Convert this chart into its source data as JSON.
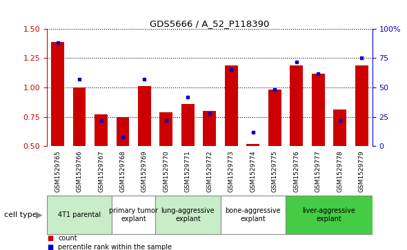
{
  "title": "GDS5666 / A_52_P118390",
  "samples": [
    "GSM1529765",
    "GSM1529766",
    "GSM1529767",
    "GSM1529768",
    "GSM1529769",
    "GSM1529770",
    "GSM1529771",
    "GSM1529772",
    "GSM1529773",
    "GSM1529774",
    "GSM1529775",
    "GSM1529776",
    "GSM1529777",
    "GSM1529778",
    "GSM1529779"
  ],
  "count_values": [
    1.39,
    1.0,
    0.77,
    0.75,
    1.01,
    0.79,
    0.86,
    0.8,
    1.19,
    0.52,
    0.98,
    1.19,
    1.12,
    0.81,
    1.19
  ],
  "percentile_values": [
    88,
    57,
    22,
    8,
    57,
    22,
    42,
    28,
    65,
    12,
    48,
    72,
    62,
    22,
    75
  ],
  "ylim_left": [
    0.5,
    1.5
  ],
  "ylim_right": [
    0,
    100
  ],
  "yticks_left": [
    0.5,
    0.75,
    1.0,
    1.25,
    1.5
  ],
  "yticks_right": [
    0,
    25,
    50,
    75,
    100
  ],
  "cell_types": [
    {
      "label": "4T1 parental",
      "start": 0,
      "end": 3,
      "color": "#c8edc8"
    },
    {
      "label": "primary tumor\nexplant",
      "start": 3,
      "end": 5,
      "color": "#ffffff"
    },
    {
      "label": "lung-aggressive\nexplant",
      "start": 5,
      "end": 8,
      "color": "#c8edc8"
    },
    {
      "label": "bone-aggressive\nexplant",
      "start": 8,
      "end": 11,
      "color": "#ffffff"
    },
    {
      "label": "liver-aggressive\nexplant",
      "start": 11,
      "end": 15,
      "color": "#44cc44"
    }
  ],
  "bar_color": "#cc0000",
  "dot_color": "#0000cc",
  "axis_color_left": "#cc0000",
  "axis_color_right": "#0000cc",
  "bg_sample_row": "#cccccc",
  "bar_width": 0.6,
  "legend_count_label": "count",
  "legend_percentile_label": "percentile rank within the sample",
  "cell_type_label": "cell type"
}
